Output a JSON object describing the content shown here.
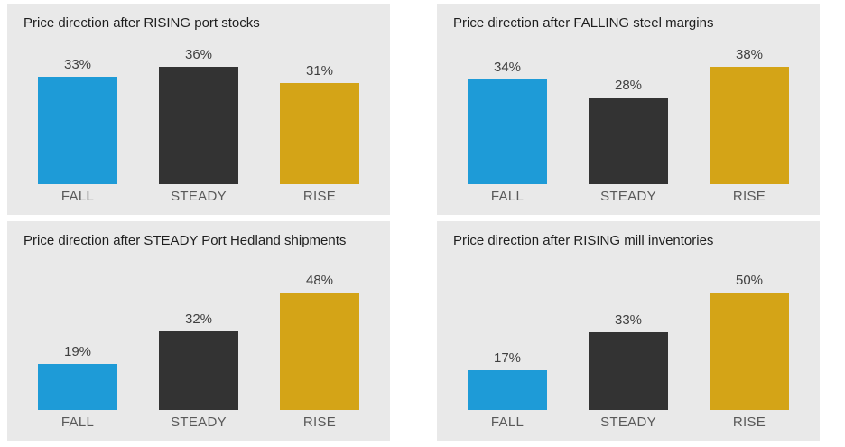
{
  "series_colors": {
    "FALL": "#1e9bd7",
    "STEADY": "#333333",
    "RISE": "#d4a417"
  },
  "chart_data": [
    {
      "type": "bar",
      "title": "Price direction after RISING port stocks",
      "categories": [
        "FALL",
        "STEADY",
        "RISE"
      ],
      "values": [
        33,
        36,
        31
      ],
      "value_labels": [
        "33%",
        "36%",
        "31%"
      ],
      "colors": [
        "#1e9bd7",
        "#333333",
        "#d4a417"
      ],
      "ylabel": "",
      "xlabel": "",
      "legend": "none",
      "grid": false
    },
    {
      "type": "bar",
      "title": "Price direction after FALLING steel margins",
      "categories": [
        "FALL",
        "STEADY",
        "RISE"
      ],
      "values": [
        34,
        28,
        38
      ],
      "value_labels": [
        "34%",
        "28%",
        "38%"
      ],
      "colors": [
        "#1e9bd7",
        "#333333",
        "#d4a417"
      ],
      "ylabel": "",
      "xlabel": "",
      "legend": "none",
      "grid": false
    },
    {
      "type": "bar",
      "title": "Price direction after STEADY Port Hedland shipments",
      "categories": [
        "FALL",
        "STEADY",
        "RISE"
      ],
      "values": [
        19,
        32,
        48
      ],
      "value_labels": [
        "19%",
        "32%",
        "48%"
      ],
      "colors": [
        "#1e9bd7",
        "#333333",
        "#d4a417"
      ],
      "ylabel": "",
      "xlabel": "",
      "legend": "none",
      "grid": false
    },
    {
      "type": "bar",
      "title": "Price direction after RISING mill inventories",
      "categories": [
        "FALL",
        "STEADY",
        "RISE"
      ],
      "values": [
        17,
        33,
        50
      ],
      "value_labels": [
        "17%",
        "33%",
        "50%"
      ],
      "colors": [
        "#1e9bd7",
        "#333333",
        "#d4a417"
      ],
      "ylabel": "",
      "xlabel": "",
      "legend": "none",
      "grid": false
    }
  ]
}
